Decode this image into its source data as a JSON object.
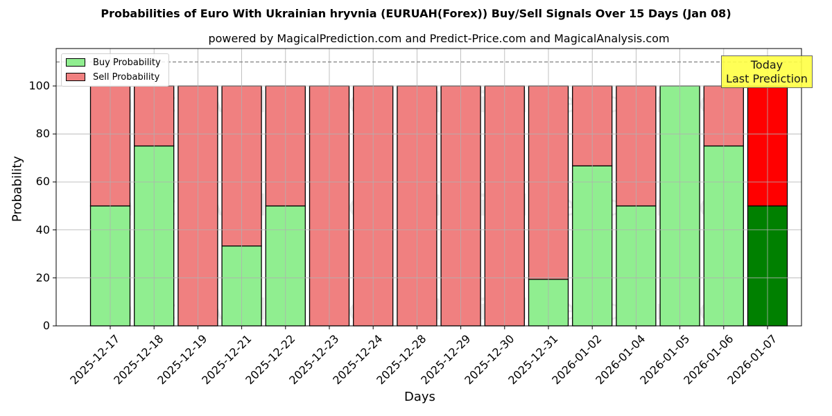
{
  "chart_data": {
    "type": "bar",
    "stacked": true,
    "title": "Probabilities of Euro With Ukrainian hryvnia (EURUAH(Forex)) Buy/Sell Signals Over 15 Days (Jan 08)",
    "subtitle": "powered by MagicalPrediction.com and Predict-Price.com and MagicalAnalysis.com",
    "xlabel": "Days",
    "ylabel": "Probability",
    "ylim": [
      0,
      115
    ],
    "yticks": [
      0,
      20,
      40,
      60,
      80,
      100
    ],
    "grid": true,
    "reference_line": {
      "y": 110,
      "style": "dashed",
      "color": "#808080"
    },
    "legend_position": "upper left",
    "categories": [
      "2025-12-17",
      "2025-12-18",
      "2025-12-19",
      "2025-12-21",
      "2025-12-22",
      "2025-12-23",
      "2025-12-24",
      "2025-12-28",
      "2025-12-29",
      "2025-12-30",
      "2025-12-31",
      "2026-01-02",
      "2026-01-04",
      "2026-01-05",
      "2026-01-06",
      "2026-01-07"
    ],
    "series": [
      {
        "name": "Buy Probability",
        "color": "#90ee90",
        "values": [
          50,
          75,
          0,
          33.3,
          50,
          0,
          0,
          0,
          0,
          0,
          19.4,
          66.7,
          50,
          100,
          75,
          50
        ]
      },
      {
        "name": "Sell Probability",
        "color": "#f08080",
        "values": [
          50,
          25,
          100,
          66.7,
          50,
          100,
          100,
          100,
          100,
          100,
          80.6,
          33.3,
          50,
          0,
          25,
          50
        ]
      }
    ],
    "highlight": {
      "category": "2026-01-07",
      "buy_color": "#008000",
      "sell_color": "#ff0000"
    },
    "annotation": {
      "text_line1": "Today",
      "text_line2": "Last Prediction",
      "background": "#ffff44"
    },
    "watermarks": [
      "MagicalAnalysis.com",
      "MagicalPrediction.com"
    ]
  },
  "legend": {
    "buy": "Buy Probability",
    "sell": "Sell Probability"
  },
  "yticks": [
    "0",
    "20",
    "40",
    "60",
    "80",
    "100"
  ]
}
